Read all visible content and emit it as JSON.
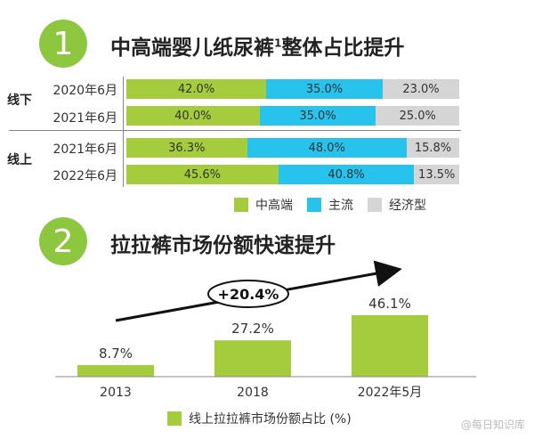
{
  "section1": {
    "number": "1",
    "title": "中高端婴儿纸尿裤",
    "title_sup": "1",
    "title_suffix": "整体占比提升"
  },
  "colors": {
    "high": "#a4cc3c",
    "main": "#27c3ec",
    "econ": "#d5d5d5",
    "accent": "#8dc63f"
  },
  "chart_data": [
    {
      "type": "bar",
      "stacked": true,
      "orientation": "horizontal",
      "groups": [
        {
          "label": "线下",
          "rows": [
            {
              "label": "2020年6月",
              "values": [
                42.0,
                35.0,
                23.0
              ],
              "labels": [
                "42.0%",
                "35.0%",
                "23.0%"
              ]
            },
            {
              "label": "2021年6月",
              "values": [
                40.0,
                35.0,
                25.0
              ],
              "labels": [
                "40.0%",
                "35.0%",
                "25.0%"
              ]
            }
          ]
        },
        {
          "label": "线上",
          "rows": [
            {
              "label": "2021年6月",
              "values": [
                36.3,
                48.0,
                15.8
              ],
              "labels": [
                "36.3%",
                "48.0%",
                "15.8%"
              ]
            },
            {
              "label": "2022年6月",
              "values": [
                45.6,
                40.8,
                13.5
              ],
              "labels": [
                "45.6%",
                "40.8%",
                "13.5%"
              ]
            }
          ]
        }
      ],
      "series": [
        {
          "name": "中高端",
          "color": "#a4cc3c"
        },
        {
          "name": "主流",
          "color": "#27c3ec"
        },
        {
          "name": "经济型",
          "color": "#d5d5d5"
        }
      ]
    },
    {
      "type": "bar",
      "categories": [
        "2013",
        "2018",
        "2022年5月"
      ],
      "values": [
        8.7,
        27.2,
        46.1
      ],
      "value_labels": [
        "8.7%",
        "27.2%",
        "46.1%"
      ],
      "annotation": "+20.4%",
      "series": [
        {
          "name": "线上拉拉裤市场份额占比 (%)",
          "color": "#a4cc3c"
        }
      ]
    }
  ],
  "section2": {
    "number": "2",
    "title": "拉拉裤市场份额快速提升"
  },
  "watermark": "@每日知识库"
}
